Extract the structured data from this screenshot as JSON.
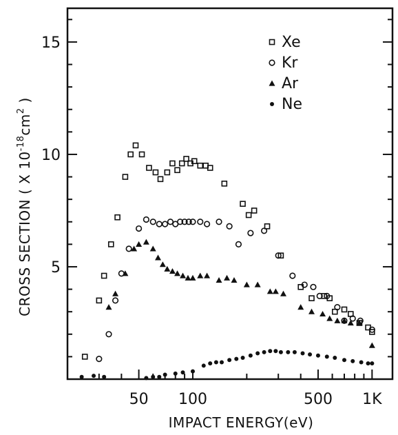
{
  "chart_data": {
    "type": "scatter",
    "xscale": "log",
    "xlim": [
      20,
      1300
    ],
    "ylim": [
      0,
      16.5
    ],
    "xlabel": "IMPACT ENERGY(eV)",
    "ylabel_parts": {
      "pre": "CROSS SECTION ( X 10",
      "exp1": "-18",
      "mid": "cm",
      "exp2": "2",
      "post": " )"
    },
    "x_ticks": [
      {
        "value": 50,
        "label": "50"
      },
      {
        "value": 100,
        "label": "100"
      },
      {
        "value": 500,
        "label": "500"
      },
      {
        "value": 1000,
        "label": "1K"
      }
    ],
    "y_ticks": [
      {
        "value": 5,
        "label": "5"
      },
      {
        "value": 10,
        "label": "10"
      },
      {
        "value": 15,
        "label": "15"
      }
    ],
    "legend_position": "top-right",
    "series": [
      {
        "name": "Xe",
        "marker": "square",
        "points": [
          [
            25,
            1.0
          ],
          [
            30,
            3.5
          ],
          [
            32,
            4.6
          ],
          [
            35,
            6.0
          ],
          [
            38,
            7.2
          ],
          [
            42,
            9.0
          ],
          [
            45,
            10.0
          ],
          [
            48,
            10.4
          ],
          [
            52,
            10.0
          ],
          [
            57,
            9.4
          ],
          [
            62,
            9.2
          ],
          [
            66,
            8.9
          ],
          [
            72,
            9.2
          ],
          [
            77,
            9.6
          ],
          [
            82,
            9.3
          ],
          [
            87,
            9.6
          ],
          [
            92,
            9.8
          ],
          [
            97,
            9.6
          ],
          [
            102,
            9.7
          ],
          [
            110,
            9.5
          ],
          [
            118,
            9.5
          ],
          [
            125,
            9.4
          ],
          [
            150,
            8.7
          ],
          [
            190,
            7.8
          ],
          [
            205,
            7.3
          ],
          [
            220,
            7.5
          ],
          [
            260,
            6.8
          ],
          [
            310,
            5.5
          ],
          [
            400,
            4.1
          ],
          [
            460,
            3.6
          ],
          [
            540,
            3.7
          ],
          [
            580,
            3.6
          ],
          [
            620,
            3.0
          ],
          [
            700,
            3.1
          ],
          [
            760,
            2.9
          ],
          [
            850,
            2.5
          ],
          [
            950,
            2.3
          ],
          [
            1000,
            2.1
          ]
        ]
      },
      {
        "name": "Kr",
        "marker": "circle",
        "points": [
          [
            30,
            0.9
          ],
          [
            34,
            2.0
          ],
          [
            37,
            3.5
          ],
          [
            40,
            4.7
          ],
          [
            44,
            5.8
          ],
          [
            50,
            6.7
          ],
          [
            55,
            7.1
          ],
          [
            60,
            7.0
          ],
          [
            65,
            6.9
          ],
          [
            70,
            6.9
          ],
          [
            75,
            7.0
          ],
          [
            80,
            6.9
          ],
          [
            85,
            7.0
          ],
          [
            90,
            7.0
          ],
          [
            95,
            7.0
          ],
          [
            100,
            7.0
          ],
          [
            110,
            7.0
          ],
          [
            120,
            6.9
          ],
          [
            140,
            7.0
          ],
          [
            160,
            6.8
          ],
          [
            180,
            6.0
          ],
          [
            210,
            6.5
          ],
          [
            250,
            6.6
          ],
          [
            300,
            5.5
          ],
          [
            360,
            4.6
          ],
          [
            420,
            4.2
          ],
          [
            470,
            4.1
          ],
          [
            510,
            3.7
          ],
          [
            560,
            3.7
          ],
          [
            640,
            3.2
          ],
          [
            700,
            2.6
          ],
          [
            780,
            2.7
          ],
          [
            860,
            2.6
          ],
          [
            1000,
            2.2
          ]
        ]
      },
      {
        "name": "Ar",
        "marker": "triangle",
        "points": [
          [
            34,
            3.2
          ],
          [
            37,
            3.8
          ],
          [
            42,
            4.7
          ],
          [
            47,
            5.8
          ],
          [
            50,
            6.0
          ],
          [
            55,
            6.1
          ],
          [
            60,
            5.8
          ],
          [
            64,
            5.4
          ],
          [
            68,
            5.1
          ],
          [
            72,
            4.9
          ],
          [
            77,
            4.8
          ],
          [
            82,
            4.7
          ],
          [
            88,
            4.6
          ],
          [
            94,
            4.5
          ],
          [
            100,
            4.5
          ],
          [
            110,
            4.6
          ],
          [
            120,
            4.6
          ],
          [
            140,
            4.4
          ],
          [
            155,
            4.5
          ],
          [
            170,
            4.4
          ],
          [
            200,
            4.2
          ],
          [
            230,
            4.2
          ],
          [
            270,
            3.9
          ],
          [
            290,
            3.9
          ],
          [
            320,
            3.8
          ],
          [
            400,
            3.2
          ],
          [
            460,
            3.0
          ],
          [
            530,
            2.9
          ],
          [
            580,
            2.7
          ],
          [
            640,
            2.6
          ],
          [
            700,
            2.6
          ],
          [
            760,
            2.5
          ],
          [
            850,
            2.5
          ],
          [
            1000,
            1.5
          ]
        ]
      },
      {
        "name": "Ne",
        "marker": "dot",
        "points": [
          [
            24,
            0.1
          ],
          [
            28,
            0.15
          ],
          [
            32,
            0.1
          ],
          [
            55,
            0.05
          ],
          [
            60,
            0.1
          ],
          [
            65,
            0.1
          ],
          [
            70,
            0.2
          ],
          [
            80,
            0.25
          ],
          [
            88,
            0.3
          ],
          [
            100,
            0.35
          ],
          [
            115,
            0.6
          ],
          [
            125,
            0.7
          ],
          [
            135,
            0.75
          ],
          [
            145,
            0.75
          ],
          [
            160,
            0.85
          ],
          [
            175,
            0.9
          ],
          [
            190,
            0.95
          ],
          [
            210,
            1.05
          ],
          [
            230,
            1.15
          ],
          [
            250,
            1.2
          ],
          [
            270,
            1.25
          ],
          [
            290,
            1.25
          ],
          [
            310,
            1.2
          ],
          [
            340,
            1.2
          ],
          [
            370,
            1.2
          ],
          [
            410,
            1.15
          ],
          [
            450,
            1.1
          ],
          [
            500,
            1.05
          ],
          [
            560,
            1.0
          ],
          [
            620,
            0.95
          ],
          [
            700,
            0.85
          ],
          [
            780,
            0.8
          ],
          [
            870,
            0.75
          ],
          [
            950,
            0.7
          ],
          [
            1000,
            0.7
          ]
        ]
      }
    ]
  }
}
